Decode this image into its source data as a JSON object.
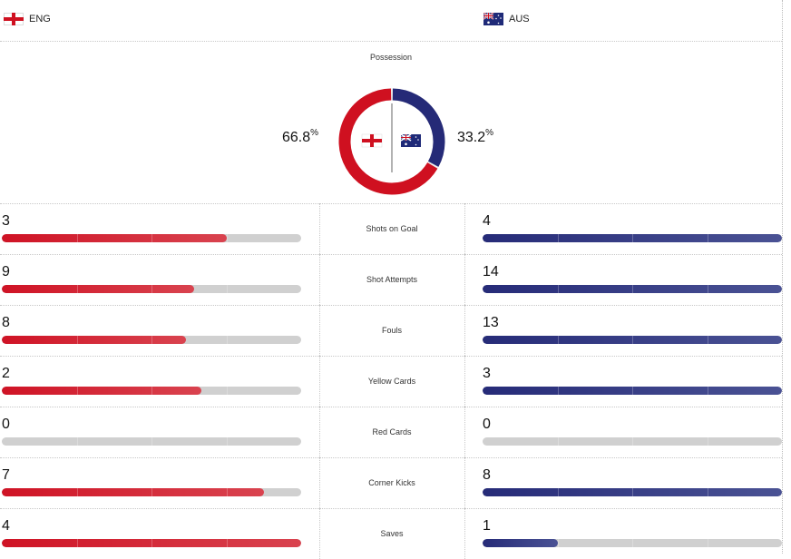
{
  "teams": {
    "home": {
      "code": "ENG",
      "flag": "england-flag-icon",
      "color": "#cf1020"
    },
    "away": {
      "code": "AUS",
      "flag": "australia-flag-icon",
      "color": "#252a77"
    }
  },
  "possession": {
    "title": "Possession",
    "home_value": "66.8",
    "away_value": "33.2",
    "unit": "%",
    "home_fraction": 0.668,
    "away_fraction": 0.332
  },
  "stats": [
    {
      "label": "Shots on Goal",
      "home": "3",
      "away": "4",
      "home_fill": 0.75,
      "away_fill": 1.0
    },
    {
      "label": "Shot Attempts",
      "home": "9",
      "away": "14",
      "home_fill": 0.643,
      "away_fill": 1.0
    },
    {
      "label": "Fouls",
      "home": "8",
      "away": "13",
      "home_fill": 0.615,
      "away_fill": 1.0
    },
    {
      "label": "Yellow Cards",
      "home": "2",
      "away": "3",
      "home_fill": 0.667,
      "away_fill": 1.0
    },
    {
      "label": "Red Cards",
      "home": "0",
      "away": "0",
      "home_fill": 0,
      "away_fill": 0
    },
    {
      "label": "Corner Kicks",
      "home": "7",
      "away": "8",
      "home_fill": 0.875,
      "away_fill": 1.0
    },
    {
      "label": "Saves",
      "home": "4",
      "away": "1",
      "home_fill": 1.0,
      "away_fill": 0.25
    }
  ]
}
